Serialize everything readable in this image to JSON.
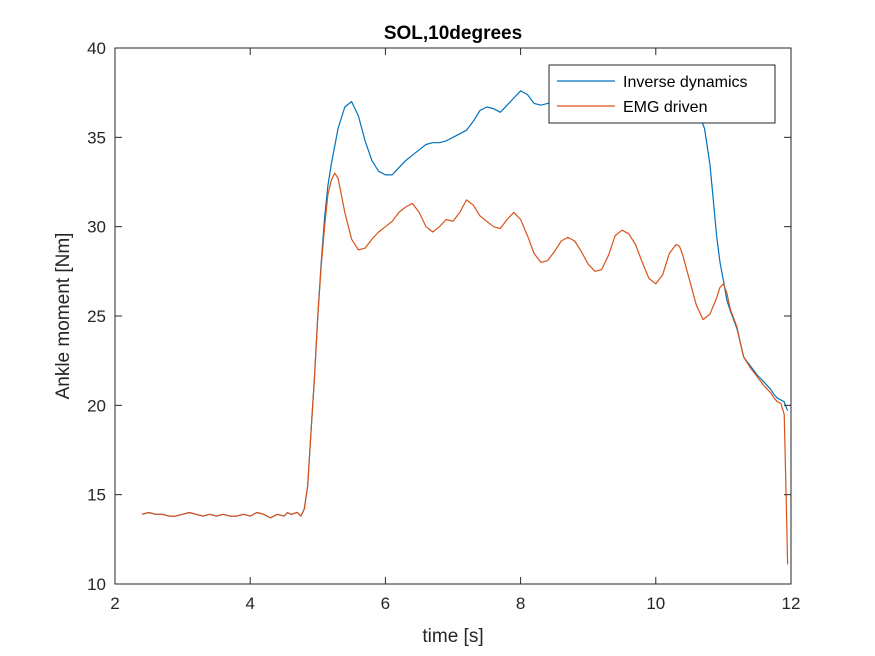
{
  "chart_data": {
    "type": "line",
    "title": "SOL,10degrees",
    "xlabel": "time  [s]",
    "ylabel": "Ankle moment [Nm]",
    "xlim": [
      2,
      12
    ],
    "ylim": [
      10,
      40
    ],
    "xticks": [
      2,
      4,
      6,
      8,
      10,
      12
    ],
    "yticks": [
      10,
      15,
      20,
      25,
      30,
      35,
      40
    ],
    "grid": false,
    "legend_position": "top-right",
    "series": [
      {
        "name": "Inverse dynamics",
        "color": "#0072BD",
        "points": [
          [
            2.4,
            13.9
          ],
          [
            2.5,
            14.0
          ],
          [
            2.6,
            13.9
          ],
          [
            2.7,
            13.9
          ],
          [
            2.8,
            13.8
          ],
          [
            2.9,
            13.8
          ],
          [
            3.0,
            13.9
          ],
          [
            3.1,
            14.0
          ],
          [
            3.2,
            13.9
          ],
          [
            3.3,
            13.8
          ],
          [
            3.4,
            13.9
          ],
          [
            3.5,
            13.8
          ],
          [
            3.6,
            13.9
          ],
          [
            3.7,
            13.8
          ],
          [
            3.8,
            13.8
          ],
          [
            3.9,
            13.9
          ],
          [
            4.0,
            13.8
          ],
          [
            4.1,
            14.0
          ],
          [
            4.2,
            13.9
          ],
          [
            4.3,
            13.7
          ],
          [
            4.4,
            13.9
          ],
          [
            4.5,
            13.8
          ],
          [
            4.55,
            14.0
          ],
          [
            4.6,
            13.9
          ],
          [
            4.7,
            14.0
          ],
          [
            4.75,
            13.8
          ],
          [
            4.8,
            14.2
          ],
          [
            4.85,
            15.5
          ],
          [
            4.9,
            18.5
          ],
          [
            4.95,
            21.5
          ],
          [
            5.0,
            25.0
          ],
          [
            5.05,
            28.0
          ],
          [
            5.1,
            30.5
          ],
          [
            5.15,
            32.3
          ],
          [
            5.2,
            33.5
          ],
          [
            5.3,
            35.5
          ],
          [
            5.4,
            36.7
          ],
          [
            5.5,
            37.0
          ],
          [
            5.6,
            36.2
          ],
          [
            5.7,
            34.8
          ],
          [
            5.8,
            33.7
          ],
          [
            5.9,
            33.1
          ],
          [
            6.0,
            32.9
          ],
          [
            6.1,
            32.9
          ],
          [
            6.2,
            33.3
          ],
          [
            6.3,
            33.7
          ],
          [
            6.4,
            34.0
          ],
          [
            6.5,
            34.3
          ],
          [
            6.6,
            34.6
          ],
          [
            6.7,
            34.7
          ],
          [
            6.8,
            34.7
          ],
          [
            6.9,
            34.8
          ],
          [
            7.0,
            35.0
          ],
          [
            7.1,
            35.2
          ],
          [
            7.2,
            35.4
          ],
          [
            7.3,
            35.9
          ],
          [
            7.4,
            36.5
          ],
          [
            7.5,
            36.7
          ],
          [
            7.6,
            36.6
          ],
          [
            7.7,
            36.4
          ],
          [
            7.8,
            36.8
          ],
          [
            7.9,
            37.2
          ],
          [
            8.0,
            37.6
          ],
          [
            8.1,
            37.4
          ],
          [
            8.2,
            36.9
          ],
          [
            8.3,
            36.8
          ],
          [
            8.4,
            36.9
          ],
          [
            8.5,
            36.9
          ],
          [
            8.6,
            36.9
          ],
          [
            8.7,
            36.9
          ],
          [
            8.8,
            37.0
          ],
          [
            8.9,
            36.9
          ],
          [
            9.0,
            36.9
          ],
          [
            9.2,
            36.9
          ],
          [
            9.4,
            37.0
          ],
          [
            9.6,
            37.0
          ],
          [
            9.8,
            36.9
          ],
          [
            10.0,
            37.0
          ],
          [
            10.2,
            37.0
          ],
          [
            10.4,
            37.0
          ],
          [
            10.55,
            36.8
          ],
          [
            10.65,
            36.2
          ],
          [
            10.72,
            35.5
          ],
          [
            10.8,
            33.5
          ],
          [
            10.85,
            31.5
          ],
          [
            10.9,
            29.5
          ],
          [
            10.95,
            28.0
          ],
          [
            11.0,
            27.0
          ],
          [
            11.05,
            25.9
          ],
          [
            11.1,
            25.3
          ],
          [
            11.2,
            24.3
          ],
          [
            11.25,
            23.5
          ],
          [
            11.3,
            22.7
          ],
          [
            11.4,
            22.2
          ],
          [
            11.5,
            21.7
          ],
          [
            11.6,
            21.3
          ],
          [
            11.7,
            20.9
          ],
          [
            11.75,
            20.6
          ],
          [
            11.8,
            20.4
          ],
          [
            11.85,
            20.3
          ],
          [
            11.9,
            20.2
          ],
          [
            11.95,
            19.7
          ]
        ]
      },
      {
        "name": "EMG driven",
        "color": "#D95319",
        "points": [
          [
            2.4,
            13.9
          ],
          [
            2.5,
            14.0
          ],
          [
            2.6,
            13.9
          ],
          [
            2.7,
            13.9
          ],
          [
            2.8,
            13.8
          ],
          [
            2.9,
            13.8
          ],
          [
            3.0,
            13.9
          ],
          [
            3.1,
            14.0
          ],
          [
            3.2,
            13.9
          ],
          [
            3.3,
            13.8
          ],
          [
            3.4,
            13.9
          ],
          [
            3.5,
            13.8
          ],
          [
            3.6,
            13.9
          ],
          [
            3.7,
            13.8
          ],
          [
            3.8,
            13.8
          ],
          [
            3.9,
            13.9
          ],
          [
            4.0,
            13.8
          ],
          [
            4.1,
            14.0
          ],
          [
            4.2,
            13.9
          ],
          [
            4.3,
            13.7
          ],
          [
            4.4,
            13.9
          ],
          [
            4.5,
            13.8
          ],
          [
            4.55,
            14.0
          ],
          [
            4.6,
            13.9
          ],
          [
            4.7,
            14.0
          ],
          [
            4.75,
            13.8
          ],
          [
            4.8,
            14.2
          ],
          [
            4.85,
            15.5
          ],
          [
            4.9,
            18.5
          ],
          [
            4.95,
            21.5
          ],
          [
            5.0,
            25.0
          ],
          [
            5.05,
            27.8
          ],
          [
            5.1,
            30.0
          ],
          [
            5.15,
            31.8
          ],
          [
            5.2,
            32.6
          ],
          [
            5.25,
            33.0
          ],
          [
            5.3,
            32.7
          ],
          [
            5.4,
            30.8
          ],
          [
            5.5,
            29.3
          ],
          [
            5.6,
            28.7
          ],
          [
            5.7,
            28.8
          ],
          [
            5.8,
            29.3
          ],
          [
            5.9,
            29.7
          ],
          [
            6.0,
            30.0
          ],
          [
            6.1,
            30.3
          ],
          [
            6.2,
            30.8
          ],
          [
            6.3,
            31.1
          ],
          [
            6.4,
            31.3
          ],
          [
            6.5,
            30.8
          ],
          [
            6.6,
            30.0
          ],
          [
            6.7,
            29.7
          ],
          [
            6.8,
            30.0
          ],
          [
            6.9,
            30.4
          ],
          [
            7.0,
            30.3
          ],
          [
            7.1,
            30.8
          ],
          [
            7.2,
            31.5
          ],
          [
            7.3,
            31.2
          ],
          [
            7.4,
            30.6
          ],
          [
            7.5,
            30.3
          ],
          [
            7.6,
            30.0
          ],
          [
            7.7,
            29.9
          ],
          [
            7.8,
            30.4
          ],
          [
            7.9,
            30.8
          ],
          [
            8.0,
            30.4
          ],
          [
            8.1,
            29.5
          ],
          [
            8.2,
            28.5
          ],
          [
            8.3,
            28.0
          ],
          [
            8.4,
            28.1
          ],
          [
            8.5,
            28.6
          ],
          [
            8.6,
            29.2
          ],
          [
            8.7,
            29.4
          ],
          [
            8.8,
            29.2
          ],
          [
            8.9,
            28.6
          ],
          [
            9.0,
            27.9
          ],
          [
            9.1,
            27.5
          ],
          [
            9.2,
            27.6
          ],
          [
            9.3,
            28.4
          ],
          [
            9.4,
            29.5
          ],
          [
            9.5,
            29.8
          ],
          [
            9.6,
            29.6
          ],
          [
            9.7,
            29.0
          ],
          [
            9.8,
            28.0
          ],
          [
            9.9,
            27.1
          ],
          [
            10.0,
            26.8
          ],
          [
            10.1,
            27.3
          ],
          [
            10.2,
            28.5
          ],
          [
            10.3,
            29.0
          ],
          [
            10.35,
            28.9
          ],
          [
            10.4,
            28.4
          ],
          [
            10.5,
            27.0
          ],
          [
            10.6,
            25.6
          ],
          [
            10.7,
            24.8
          ],
          [
            10.8,
            25.1
          ],
          [
            10.9,
            26.0
          ],
          [
            10.95,
            26.6
          ],
          [
            11.0,
            26.8
          ],
          [
            11.05,
            26.3
          ],
          [
            11.1,
            25.4
          ],
          [
            11.2,
            24.4
          ],
          [
            11.25,
            23.5
          ],
          [
            11.3,
            22.7
          ],
          [
            11.4,
            22.1
          ],
          [
            11.5,
            21.6
          ],
          [
            11.6,
            21.1
          ],
          [
            11.7,
            20.7
          ],
          [
            11.75,
            20.4
          ],
          [
            11.8,
            20.2
          ],
          [
            11.85,
            20.1
          ],
          [
            11.9,
            19.5
          ],
          [
            11.93,
            14.5
          ],
          [
            11.95,
            11.1
          ]
        ]
      }
    ]
  }
}
